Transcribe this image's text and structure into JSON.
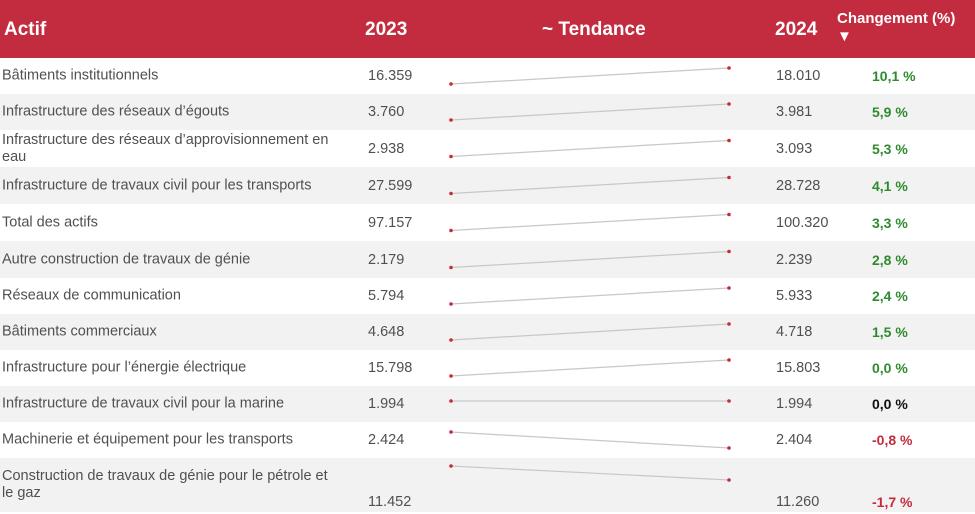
{
  "header": {
    "actif": "Actif",
    "y2023": "2023",
    "trend": "~ Tendance",
    "y2024": "2024",
    "change": "Changement (%)",
    "sort_glyph": "▼"
  },
  "rows": [
    {
      "label": "Bâtiments institutionnels",
      "v2023": "16.359",
      "v2024": "18.010",
      "change": "10,1 %",
      "tone": "pos"
    },
    {
      "label": "Infrastructure des réseaux d’égouts",
      "v2023": "3.760",
      "v2024": "3.981",
      "change": "5,9 %",
      "tone": "pos"
    },
    {
      "label": "Infrastructure des réseaux d’approvisionnement en eau",
      "v2023": "2.938",
      "v2024": "3.093",
      "change": "5,3 %",
      "tone": "pos"
    },
    {
      "label": "Infrastructure de travaux civil pour les transports",
      "v2023": "27.599",
      "v2024": "28.728",
      "change": "4,1 %",
      "tone": "pos"
    },
    {
      "label": "Total des actifs",
      "v2023": "97.157",
      "v2024": "100.320",
      "change": "3,3 %",
      "tone": "pos"
    },
    {
      "label": "Autre construction de travaux de génie",
      "v2023": "2.179",
      "v2024": "2.239",
      "change": "2,8 %",
      "tone": "pos"
    },
    {
      "label": "Réseaux de communication",
      "v2023": "5.794",
      "v2024": "5.933",
      "change": "2,4 %",
      "tone": "pos"
    },
    {
      "label": "Bâtiments commerciaux",
      "v2023": "4.648",
      "v2024": "4.718",
      "change": "1,5 %",
      "tone": "pos"
    },
    {
      "label": "Infrastructure pour l’énergie électrique",
      "v2023": "15.798",
      "v2024": "15.803",
      "change": "0,0 %",
      "tone": "pos"
    },
    {
      "label": "Infrastructure de travaux civil pour la marine",
      "v2023": "1.994",
      "v2024": "1.994",
      "change": "0,0 %",
      "tone": "neu"
    },
    {
      "label": "Machinerie et équipement pour les transports",
      "v2023": "2.424",
      "v2024": "2.404",
      "change": "-0,8 %",
      "tone": "neg"
    },
    {
      "label": "Construction de travaux de génie pour le pétrole et le gaz",
      "v2023": "11.452",
      "v2024": "11.260",
      "change": "-1,7 %",
      "tone": "neg"
    }
  ],
  "colors": {
    "header_bg": "#c32b3f",
    "positive": "#2e8b2e",
    "negative": "#c32b3f",
    "neutral": "#111111",
    "sparkline": "#c8c8c8",
    "sparkline_dot": "#c32b3f"
  }
}
